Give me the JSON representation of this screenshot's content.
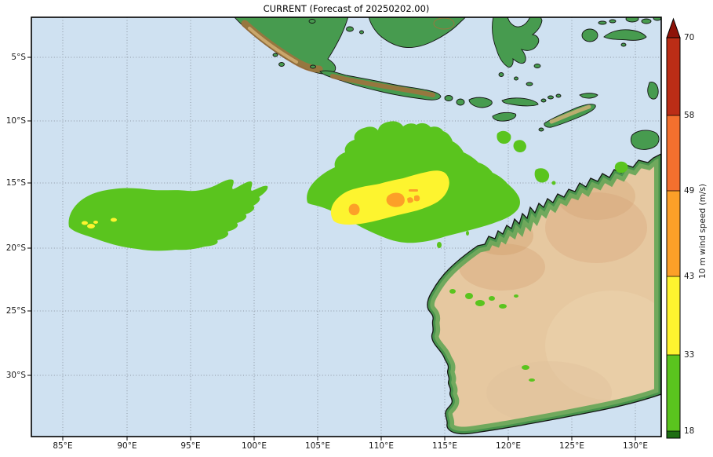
{
  "title": "CURRENT (Forecast of 20250202.00)",
  "axes": {
    "lon_ticks": [
      "85°E",
      "90°E",
      "95°E",
      "100°E",
      "105°E",
      "110°E",
      "115°E",
      "120°E",
      "125°E",
      "130°E"
    ],
    "lat_ticks": [
      "5°S",
      "10°S",
      "15°S",
      "20°S",
      "25°S",
      "30°S"
    ]
  },
  "colorbar": {
    "label": "10 m wind speed (m/s)",
    "tick_values": [
      "70",
      "58",
      "49",
      "43",
      "33",
      "18"
    ],
    "segments": [
      {
        "value_range": "58-70",
        "color": "#bb2d16"
      },
      {
        "value_range": "49-58",
        "color": "#f3702e"
      },
      {
        "value_range": "43-49",
        "color": "#fca028"
      },
      {
        "value_range": "33-43",
        "color": "#fdf42f"
      },
      {
        "value_range": "18-33",
        "color": "#5ac41e"
      }
    ],
    "over_color": "#8e1309",
    "under_color": "#1d6e12"
  },
  "colors": {
    "ocean": "#cfe1f1",
    "grid": "#8a929e",
    "wind_green": "#5ac41e",
    "wind_yellow": "#fdf42f",
    "wind_orange": "#fca028",
    "land_green": "#479b4f",
    "land_ridge": "#a5713c",
    "land_ridge2": "#d7b277",
    "aus_base": "#e6c8a0",
    "aus_patch": "#d9a87c",
    "coast_green": "#63a555"
  },
  "map": {
    "region": "Eastern Indian Ocean / Indonesia / Western Australia",
    "overlay": "10 m wind speed swaths",
    "swaths": [
      {
        "level": "18-33 m/s",
        "color_name": "green",
        "location": "two large lobes near 16-19S, 86-98E and 12-19S, 104-118E"
      },
      {
        "level": "33-43 m/s",
        "color_name": "yellow",
        "location": "core band near 15-17S, 108-113E and specks near 17S, 89E"
      },
      {
        "level": "43-49 m/s",
        "color_name": "orange",
        "location": "small cores near 16S, 110-112E"
      }
    ]
  }
}
